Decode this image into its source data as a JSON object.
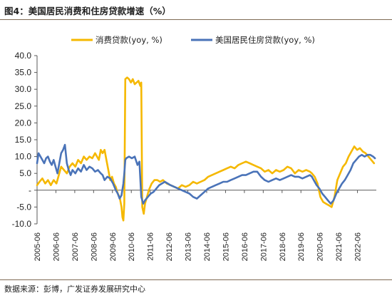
{
  "page": {
    "title": "图4：美国居民消费和住房贷款增速（%）",
    "source": "数据来源：彭博，广发证券发展研究中心"
  },
  "chart_data": {
    "type": "line",
    "title": "图4：美国居民消费和住房贷款增速（%）",
    "xlabel": "",
    "ylabel": "",
    "ylim": [
      -10,
      40
    ],
    "y_ticks": [
      -10,
      -5,
      0,
      5,
      10,
      15,
      20,
      25,
      30,
      35,
      40
    ],
    "y_tick_labels": [
      "-10.0",
      "-5.0",
      "-",
      "5.0",
      "10.0",
      "15.0",
      "20.0",
      "25.0",
      "30.0",
      "35.0",
      "40.0"
    ],
    "x_range": [
      2005.42,
      2023.42
    ],
    "x_ticks": [
      "2005-06",
      "2006-06",
      "2007-06",
      "2008-06",
      "2009-06",
      "2010-06",
      "2011-06",
      "2012-06",
      "2013-06",
      "2014-06",
      "2015-06",
      "2016-06",
      "2017-06",
      "2018-06",
      "2019-06",
      "2020-06",
      "2021-06",
      "2022-06"
    ],
    "grid": false,
    "legend_position": "top",
    "series": [
      {
        "name": "消费贷款(yoy, %)",
        "color": "#F5B800",
        "x": [
          2005.42,
          2005.55,
          2005.7,
          2005.85,
          2006.0,
          2006.15,
          2006.3,
          2006.45,
          2006.55,
          2006.7,
          2006.85,
          2007.0,
          2007.15,
          2007.3,
          2007.45,
          2007.6,
          2007.75,
          2007.9,
          2008.05,
          2008.2,
          2008.35,
          2008.5,
          2008.6,
          2008.7,
          2008.8,
          2008.9,
          2009.0,
          2009.1,
          2009.2,
          2009.3,
          2009.4,
          2009.5,
          2009.6,
          2009.7,
          2009.8,
          2009.9,
          2009.95,
          2010.0,
          2010.05,
          2010.1,
          2010.2,
          2010.3,
          2010.4,
          2010.5,
          2010.6,
          2010.7,
          2010.8,
          2010.9,
          2010.95,
          2011.0,
          2011.08,
          2011.15,
          2011.25,
          2011.35,
          2011.5,
          2011.65,
          2011.8,
          2011.95,
          2012.1,
          2012.3,
          2012.5,
          2012.7,
          2012.9,
          2013.1,
          2013.3,
          2013.5,
          2013.7,
          2013.9,
          2014.1,
          2014.3,
          2014.5,
          2014.7,
          2014.9,
          2015.1,
          2015.3,
          2015.5,
          2015.7,
          2015.9,
          2016.1,
          2016.3,
          2016.5,
          2016.7,
          2016.9,
          2017.1,
          2017.3,
          2017.5,
          2017.7,
          2017.9,
          2018.1,
          2018.3,
          2018.5,
          2018.7,
          2018.9,
          2019.1,
          2019.3,
          2019.5,
          2019.7,
          2019.9,
          2020.0,
          2020.15,
          2020.3,
          2020.45,
          2020.6,
          2020.75,
          2020.9,
          2021.05,
          2021.2,
          2021.35,
          2021.5,
          2021.65,
          2021.8,
          2021.95,
          2022.1,
          2022.25,
          2022.4,
          2022.55,
          2022.7,
          2022.85,
          2023.0,
          2023.15,
          2023.3
        ],
        "y": [
          1.5,
          2.5,
          3.5,
          2.0,
          3.0,
          1.5,
          3.0,
          2.0,
          4.0,
          7.0,
          6.0,
          5.0,
          7.0,
          8.0,
          7.0,
          9.0,
          8.0,
          10.0,
          9.0,
          10.0,
          9.5,
          11.0,
          10.0,
          9.0,
          12.0,
          11.0,
          12.0,
          9.0,
          6.0,
          3.0,
          4.0,
          2.0,
          1.0,
          -1.0,
          -2.0,
          -5.0,
          -8.0,
          -9.0,
          -4.0,
          33.0,
          33.5,
          33.0,
          32.0,
          33.0,
          31.5,
          32.0,
          32.5,
          31.0,
          32.0,
          -5.0,
          -7.0,
          -4.0,
          -2.0,
          0.0,
          2.0,
          3.0,
          3.0,
          2.5,
          3.0,
          2.0,
          1.5,
          1.0,
          0.5,
          1.5,
          1.0,
          1.5,
          2.5,
          2.0,
          2.5,
          3.0,
          4.0,
          4.5,
          5.0,
          5.5,
          6.0,
          6.5,
          7.0,
          6.5,
          7.5,
          8.0,
          8.5,
          8.0,
          7.5,
          7.0,
          6.5,
          5.5,
          6.0,
          5.0,
          6.0,
          5.5,
          6.0,
          7.0,
          6.5,
          5.0,
          6.0,
          5.5,
          6.0,
          5.5,
          5.0,
          4.0,
          2.0,
          -2.0,
          -3.5,
          -4.0,
          -4.5,
          -5.0,
          -2.0,
          3.0,
          5.0,
          7.0,
          8.0,
          10.0,
          11.5,
          13.0,
          12.0,
          12.5,
          11.5,
          11.0,
          10.0,
          9.0,
          8.0
        ]
      },
      {
        "name": "美国居民住房贷款(yoy, %)",
        "color": "#4A73B8",
        "x": [
          2005.42,
          2005.5,
          2005.6,
          2005.7,
          2005.8,
          2005.9,
          2006.0,
          2006.1,
          2006.2,
          2006.3,
          2006.4,
          2006.5,
          2006.6,
          2006.7,
          2006.8,
          2006.9,
          2007.0,
          2007.1,
          2007.2,
          2007.3,
          2007.45,
          2007.6,
          2007.75,
          2007.9,
          2008.05,
          2008.2,
          2008.35,
          2008.5,
          2008.65,
          2008.8,
          2008.9,
          2009.0,
          2009.15,
          2009.3,
          2009.45,
          2009.6,
          2009.7,
          2009.8,
          2009.9,
          2010.0,
          2010.05,
          2010.1,
          2010.15,
          2010.3,
          2010.45,
          2010.6,
          2010.75,
          2010.85,
          2010.95,
          2011.05,
          2011.15,
          2011.3,
          2011.45,
          2011.6,
          2011.75,
          2011.9,
          2012.05,
          2012.2,
          2012.35,
          2012.5,
          2012.7,
          2012.9,
          2013.1,
          2013.3,
          2013.5,
          2013.7,
          2013.9,
          2014.1,
          2014.3,
          2014.5,
          2014.7,
          2014.9,
          2015.1,
          2015.3,
          2015.5,
          2015.7,
          2015.9,
          2016.1,
          2016.3,
          2016.5,
          2016.7,
          2016.9,
          2017.1,
          2017.3,
          2017.5,
          2017.7,
          2017.9,
          2018.1,
          2018.3,
          2018.5,
          2018.7,
          2018.9,
          2019.1,
          2019.3,
          2019.5,
          2019.7,
          2019.9,
          2020.0,
          2020.1,
          2020.25,
          2020.4,
          2020.55,
          2020.7,
          2020.85,
          2021.0,
          2021.15,
          2021.3,
          2021.45,
          2021.6,
          2021.75,
          2021.9,
          2022.05,
          2022.2,
          2022.35,
          2022.5,
          2022.65,
          2022.8,
          2022.95,
          2023.1,
          2023.25,
          2023.35
        ],
        "y": [
          8.0,
          11.0,
          10.0,
          9.0,
          8.0,
          9.5,
          10.0,
          8.5,
          7.5,
          9.0,
          7.0,
          5.0,
          8.0,
          11.0,
          12.0,
          13.5,
          8.0,
          6.0,
          4.5,
          6.0,
          5.0,
          6.5,
          5.5,
          7.5,
          6.0,
          7.0,
          6.5,
          5.5,
          6.0,
          5.0,
          4.5,
          3.0,
          4.0,
          3.5,
          2.0,
          0.0,
          -1.0,
          -2.5,
          -1.5,
          2.0,
          5.0,
          9.0,
          9.5,
          10.0,
          9.5,
          10.0,
          7.5,
          8.5,
          -2.0,
          -4.0,
          -3.0,
          -2.0,
          -1.0,
          -0.5,
          0.5,
          1.5,
          2.0,
          2.5,
          2.0,
          1.5,
          1.0,
          0.5,
          0.0,
          -0.5,
          -1.0,
          -2.0,
          -2.5,
          -1.5,
          -0.5,
          0.5,
          1.0,
          1.5,
          2.0,
          2.5,
          2.5,
          3.0,
          3.5,
          4.0,
          4.5,
          4.5,
          5.0,
          5.5,
          5.5,
          4.0,
          3.0,
          2.5,
          3.0,
          3.5,
          3.0,
          3.5,
          4.0,
          4.5,
          4.0,
          4.0,
          3.5,
          4.0,
          4.5,
          4.0,
          3.0,
          1.5,
          0.5,
          -1.0,
          -2.0,
          -3.0,
          -4.0,
          -3.0,
          -1.0,
          0.5,
          2.0,
          3.0,
          4.5,
          6.0,
          8.0,
          9.0,
          10.0,
          10.5,
          10.0,
          10.5,
          10.5,
          10.0,
          9.5
        ]
      }
    ]
  }
}
